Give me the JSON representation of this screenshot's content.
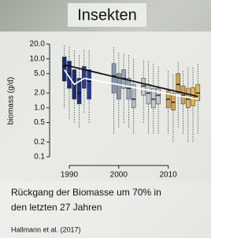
{
  "chart_data": {
    "type": "box",
    "title": "Insekten",
    "y_label": "biomass (g/d)",
    "log_y": true,
    "xlim": [
      1986.5,
      2017.7
    ],
    "xticks": [
      1990,
      2000,
      2010
    ],
    "ylim": [
      0.08,
      30
    ],
    "yticks": [
      {
        "value": 0.1,
        "label": "0.1"
      },
      {
        "value": 0.2,
        "label": "0.2"
      },
      {
        "value": 0.5,
        "label": "0.5"
      },
      {
        "value": 1,
        "label": "1.0"
      },
      {
        "value": 2,
        "label": "2.0"
      },
      {
        "value": 5,
        "label": "5.0"
      },
      {
        "value": 10,
        "label": "10.0"
      },
      {
        "value": 20,
        "label": "20.0"
      }
    ],
    "boxes": [
      {
        "x": 1989,
        "low": 1.0,
        "q1": 3.5,
        "median": 7,
        "q3": 11,
        "high": 20,
        "color": "#1c2a78"
      },
      {
        "x": 1990,
        "low": 0.6,
        "q1": 2.5,
        "median": 5,
        "q3": 9,
        "high": 18,
        "color": "#1c2a78"
      },
      {
        "x": 1991,
        "low": 0.5,
        "q1": 1.5,
        "median": 3,
        "q3": 6,
        "high": 15,
        "color": "#1c2a78"
      },
      {
        "x": 1992,
        "low": 0.4,
        "q1": 1.2,
        "median": 2,
        "q3": 4,
        "high": 12,
        "color": "#1c2a78"
      },
      {
        "x": 1993,
        "low": 0.8,
        "q1": 2.5,
        "median": 4,
        "q3": 7,
        "high": 16,
        "color": "#2a3c8c"
      },
      {
        "x": 1994,
        "low": 0.5,
        "q1": 1.5,
        "median": 3.5,
        "q3": 6,
        "high": 15,
        "color": "#2a3c8c"
      },
      {
        "x": 1999,
        "low": 0.3,
        "q1": 2,
        "median": 4.5,
        "q3": 8,
        "high": 18,
        "color": "#8797b0"
      },
      {
        "x": 2000,
        "low": 0.4,
        "q1": 1.5,
        "median": 3,
        "q3": 5,
        "high": 14,
        "color": "#8797b0"
      },
      {
        "x": 2001,
        "low": 0.5,
        "q1": 2.5,
        "median": 4,
        "q3": 6,
        "high": 13,
        "color": "#9aa8be"
      },
      {
        "x": 2002,
        "low": 0.4,
        "q1": 1.5,
        "median": 2.5,
        "q3": 4,
        "high": 12,
        "color": "#9aa8be"
      },
      {
        "x": 2003,
        "low": 0.3,
        "q1": 1,
        "median": 1.5,
        "q3": 3,
        "high": 10,
        "color": "#b4bccb"
      },
      {
        "x": 2005,
        "low": 0.5,
        "q1": 1.8,
        "median": 2.8,
        "q3": 4,
        "high": 10,
        "color": "#c4c8cf"
      },
      {
        "x": 2006,
        "low": 0.3,
        "q1": 1.2,
        "median": 2,
        "q3": 3,
        "high": 9,
        "color": "#c4c8cf"
      },
      {
        "x": 2007,
        "low": 0.3,
        "q1": 1,
        "median": 1.5,
        "q3": 2.5,
        "high": 8,
        "color": "#c4c8cf"
      },
      {
        "x": 2008,
        "low": 0.3,
        "q1": 1.2,
        "median": 1.8,
        "q3": 2.5,
        "high": 7,
        "color": "#c4c8cf"
      },
      {
        "x": 2010,
        "low": 0.3,
        "q1": 1,
        "median": 1.5,
        "q3": 2.2,
        "high": 6,
        "color": "#d4a44c"
      },
      {
        "x": 2011,
        "low": 0.2,
        "q1": 0.9,
        "median": 1.3,
        "q3": 2,
        "high": 5,
        "color": "#d4a44c"
      },
      {
        "x": 2012,
        "low": 0.4,
        "q1": 2,
        "median": 3,
        "q3": 5,
        "high": 9,
        "color": "#d4a44c"
      },
      {
        "x": 2013,
        "low": 0.3,
        "q1": 1.2,
        "median": 1.8,
        "q3": 2.8,
        "high": 6,
        "color": "#d4a44c"
      },
      {
        "x": 2014,
        "low": 0.2,
        "q1": 1,
        "median": 1.5,
        "q3": 2.5,
        "high": 7,
        "color": "#e0b458"
      },
      {
        "x": 2015,
        "low": 0.2,
        "q1": 1.1,
        "median": 1.6,
        "q3": 2.6,
        "high": 7,
        "color": "#e0b458"
      },
      {
        "x": 2016,
        "low": 0.3,
        "q1": 1.4,
        "median": 2,
        "q3": 3,
        "high": 8,
        "color": "#e0b458"
      }
    ],
    "trends": [
      {
        "color": "#ffffff",
        "x": [
          1989,
          1991,
          1993,
          2016
        ],
        "values": [
          6,
          3,
          4,
          1.5
        ]
      },
      {
        "color": "#111111",
        "x": [
          1989,
          2016
        ],
        "values": [
          7.5,
          1.7
        ]
      }
    ],
    "caption": [
      "Rückgang der Biomasse um 70% in",
      "den letzten 27 Jahren"
    ],
    "source": "Hallmann et al. (2017)"
  }
}
